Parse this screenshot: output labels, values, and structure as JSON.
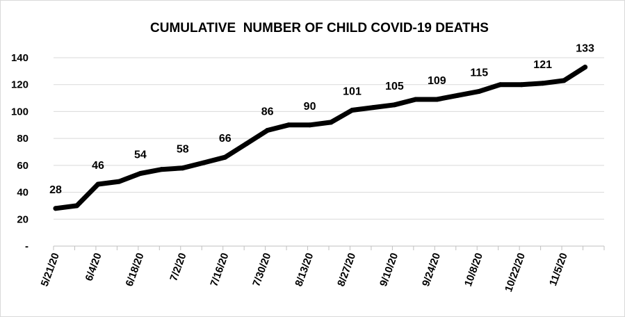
{
  "chart_data": {
    "type": "line",
    "title": "CUMULATIVE  NUMBER OF CHILD COVID-19 DEATHS",
    "xlabel": "",
    "ylabel": "",
    "ylim": [
      0,
      140
    ],
    "yticks": [
      {
        "value": 0,
        "label": "-"
      },
      {
        "value": 20,
        "label": "20"
      },
      {
        "value": 40,
        "label": "40"
      },
      {
        "value": 60,
        "label": "60"
      },
      {
        "value": 80,
        "label": "80"
      },
      {
        "value": 100,
        "label": "100"
      },
      {
        "value": 120,
        "label": "120"
      },
      {
        "value": 140,
        "label": "140"
      }
    ],
    "xtick_labels": [
      "5/21/20",
      "6/4/20",
      "6/18/20",
      "7/2/20",
      "7/16/20",
      "7/30/20",
      "8/13/20",
      "8/27/20",
      "9/10/20",
      "9/24/20",
      "10/8/20",
      "10/22/20",
      "11/5/20"
    ],
    "grid": "horizontal",
    "legend": "none",
    "line_color": "#000000",
    "series": [
      {
        "x": [
          "5/21/20",
          "5/28/20",
          "6/4/20",
          "6/11/20",
          "6/18/20",
          "6/25/20",
          "7/2/20",
          "7/9/20",
          "7/16/20",
          "7/23/20",
          "7/30/20",
          "8/6/20",
          "8/13/20",
          "8/20/20",
          "8/27/20",
          "9/3/20",
          "9/10/20",
          "9/17/20",
          "9/24/20",
          "10/1/20",
          "10/8/20",
          "10/15/20",
          "10/22/20",
          "10/29/20",
          "11/5/20",
          "11/12/20"
        ],
        "values": [
          28,
          30,
          46,
          48,
          54,
          57,
          58,
          62,
          66,
          76,
          86,
          90,
          90,
          92,
          101,
          103,
          105,
          109,
          109,
          112,
          115,
          120,
          120,
          121,
          123,
          133
        ]
      }
    ],
    "data_labels": [
      {
        "index": 0,
        "text": "28"
      },
      {
        "index": 2,
        "text": "46"
      },
      {
        "index": 4,
        "text": "54"
      },
      {
        "index": 6,
        "text": "58"
      },
      {
        "index": 8,
        "text": "66"
      },
      {
        "index": 10,
        "text": "86"
      },
      {
        "index": 12,
        "text": "90"
      },
      {
        "index": 14,
        "text": "101"
      },
      {
        "index": 16,
        "text": "105"
      },
      {
        "index": 18,
        "text": "109"
      },
      {
        "index": 20,
        "text": "115"
      },
      {
        "index": 23,
        "text": "121"
      },
      {
        "index": 25,
        "text": "133"
      }
    ]
  }
}
